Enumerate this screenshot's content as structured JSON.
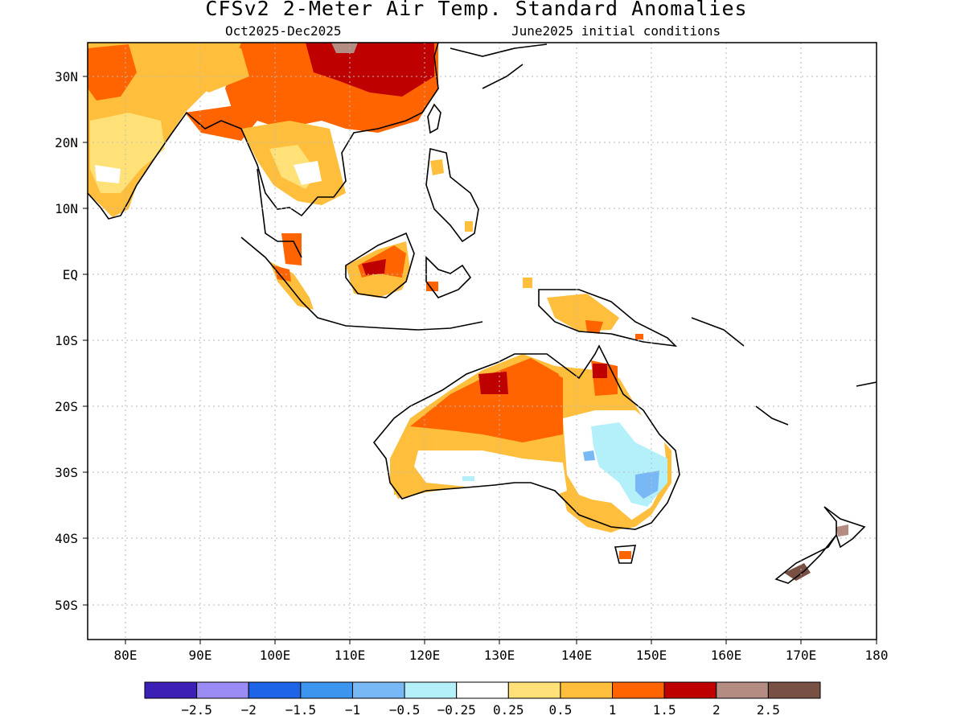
{
  "header": {
    "title": "CFSv2 2-Meter Air Temp. Standard Anomalies",
    "period": "Oct2025-Dec2025",
    "initial_conditions": "June2025 initial conditions"
  },
  "map": {
    "lon_range": [
      75,
      180
    ],
    "lat_range": [
      -55,
      35
    ],
    "lon_ticks": [
      "80E",
      "90E",
      "100E",
      "110E",
      "120E",
      "130E",
      "140E",
      "150E",
      "160E",
      "170E",
      "180"
    ],
    "lat_ticks": [
      "30N",
      "20N",
      "10N",
      "EQ",
      "10S",
      "20S",
      "30S",
      "40S",
      "50S"
    ]
  },
  "legend": {
    "colors": [
      "#3c1fb4",
      "#9b8cf5",
      "#1e64e6",
      "#3c96f0",
      "#78b9f5",
      "#b4f0fa",
      "#ffffff",
      "#ffe178",
      "#ffbe3c",
      "#ff6400",
      "#be0000",
      "#b48c82",
      "#785044"
    ],
    "labels": [
      "-2.5",
      "-2",
      "-1.5",
      "-1",
      "-0.5",
      "-0.25",
      "0.25",
      "0.5",
      "1",
      "1.5",
      "2",
      "2.5"
    ]
  }
}
